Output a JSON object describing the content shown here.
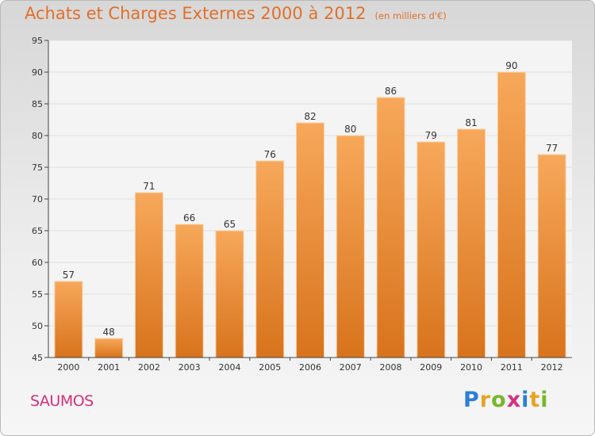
{
  "title": "Achats et Charges Externes 2000 à 2012",
  "subtitle": "(en milliers d'€)",
  "commune": "SAUMOS",
  "logo": {
    "text": "Proxiti"
  },
  "colors": {
    "bar_top": "#f7a85a",
    "bar_bottom": "#d8731c",
    "title": "#e0702a",
    "commune": "#d6307c"
  },
  "chart_data": {
    "type": "bar",
    "title": "Achats et Charges Externes 2000 à 2012",
    "subtitle": "(en milliers d'€)",
    "categories": [
      "2000",
      "2001",
      "2002",
      "2003",
      "2004",
      "2005",
      "2006",
      "2007",
      "2008",
      "2009",
      "2010",
      "2011",
      "2012"
    ],
    "values": [
      57,
      48,
      71,
      66,
      65,
      76,
      82,
      80,
      86,
      79,
      81,
      90,
      77
    ],
    "ylim": [
      45,
      95
    ],
    "yticks": [
      45,
      50,
      55,
      60,
      65,
      70,
      75,
      80,
      85,
      90,
      95
    ],
    "grid": true,
    "xlabel": "",
    "ylabel": ""
  }
}
